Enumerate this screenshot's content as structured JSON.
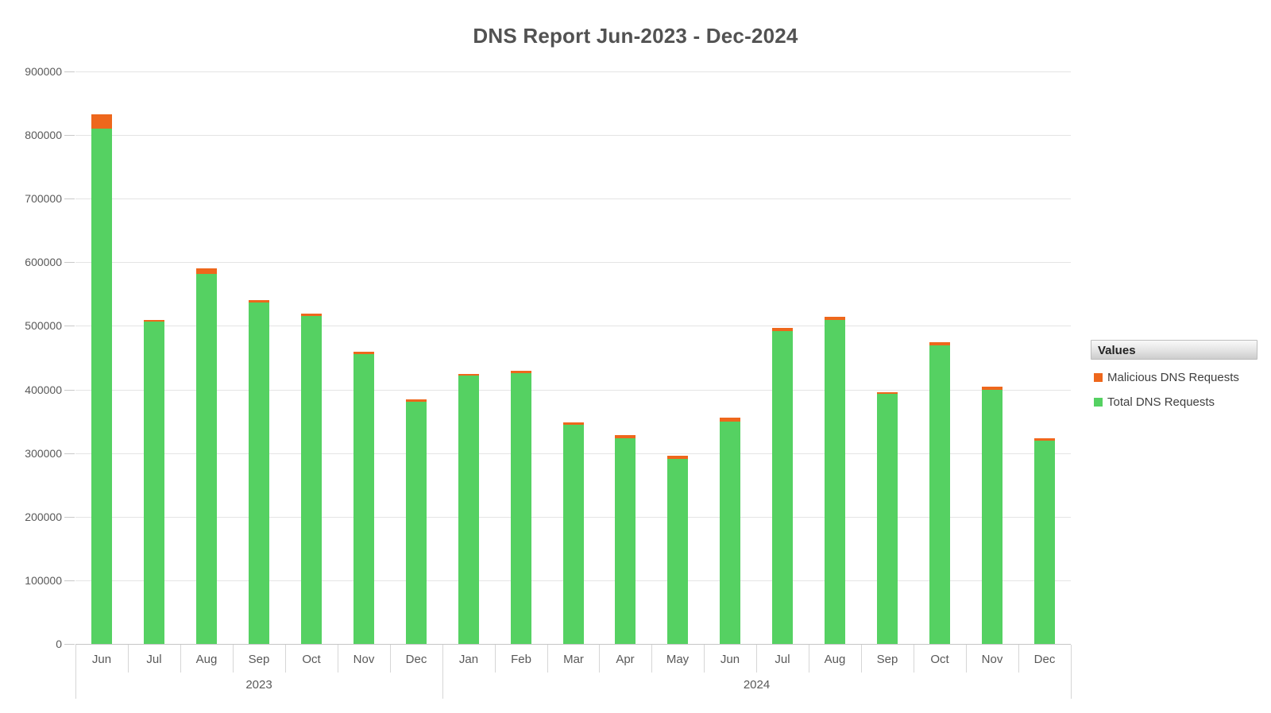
{
  "page": {
    "title": "DNS Report Jun-2023 - Dec-2024"
  },
  "legend": {
    "header": "Values",
    "items": [
      {
        "label": "Malicious DNS Requests",
        "color": "#ee671c"
      },
      {
        "label": "Total DNS Requests",
        "color": "#55d162"
      }
    ]
  },
  "chart_data": {
    "type": "bar",
    "stacked": true,
    "title": "DNS Report Jun-2023 - Dec-2024",
    "categories": [
      "Jun",
      "Jul",
      "Aug",
      "Sep",
      "Oct",
      "Nov",
      "Dec",
      "Jan",
      "Feb",
      "Mar",
      "Apr",
      "May",
      "Jun",
      "Jul",
      "Aug",
      "Sep",
      "Oct",
      "Nov",
      "Dec"
    ],
    "year_groups": [
      {
        "label": "2023",
        "span": 7
      },
      {
        "label": "2024",
        "span": 12
      }
    ],
    "series": [
      {
        "name": "Total DNS Requests",
        "color": "#55d162",
        "values": [
          810000,
          507000,
          582000,
          537000,
          515000,
          455000,
          381000,
          422000,
          426000,
          344000,
          323000,
          291000,
          350000,
          492000,
          509000,
          393000,
          469000,
          400000,
          320000
        ]
      },
      {
        "name": "Malicious DNS Requests",
        "color": "#ee671c",
        "values": [
          23000,
          2500,
          8000,
          4000,
          4000,
          4000,
          3000,
          2500,
          3000,
          4000,
          5000,
          5000,
          6000,
          5000,
          5000,
          3000,
          5000,
          4000,
          3000
        ]
      }
    ],
    "ylim": [
      0,
      900000
    ],
    "ytick_step": 100000,
    "ytick_labels": [
      "0",
      "100000",
      "200000",
      "300000",
      "400000",
      "500000",
      "600000",
      "700000",
      "800000",
      "900000"
    ],
    "grid": true,
    "legend_position": "right"
  }
}
